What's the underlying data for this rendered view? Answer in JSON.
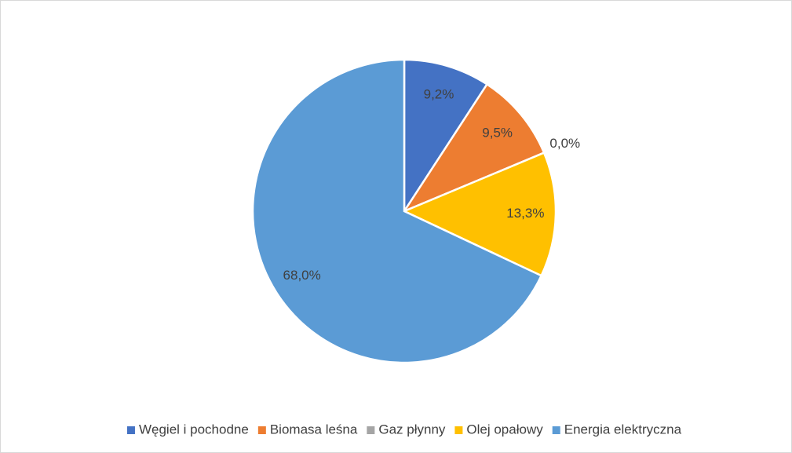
{
  "chart_data": {
    "type": "pie",
    "categories": [
      "Węgiel i pochodne",
      "Biomasa leśna",
      "Gaz płynny",
      "Olej opałowy",
      "Energia elektryczna"
    ],
    "values": [
      9.2,
      9.5,
      0.0,
      13.3,
      68.0
    ],
    "value_labels": [
      "9,2%",
      "9,5%",
      "0,0%",
      "13,3%",
      "68,0%"
    ],
    "colors": [
      "#4472c4",
      "#ed7d31",
      "#a5a5a5",
      "#ffc000",
      "#5b9bd5"
    ],
    "legend": "bottom"
  }
}
